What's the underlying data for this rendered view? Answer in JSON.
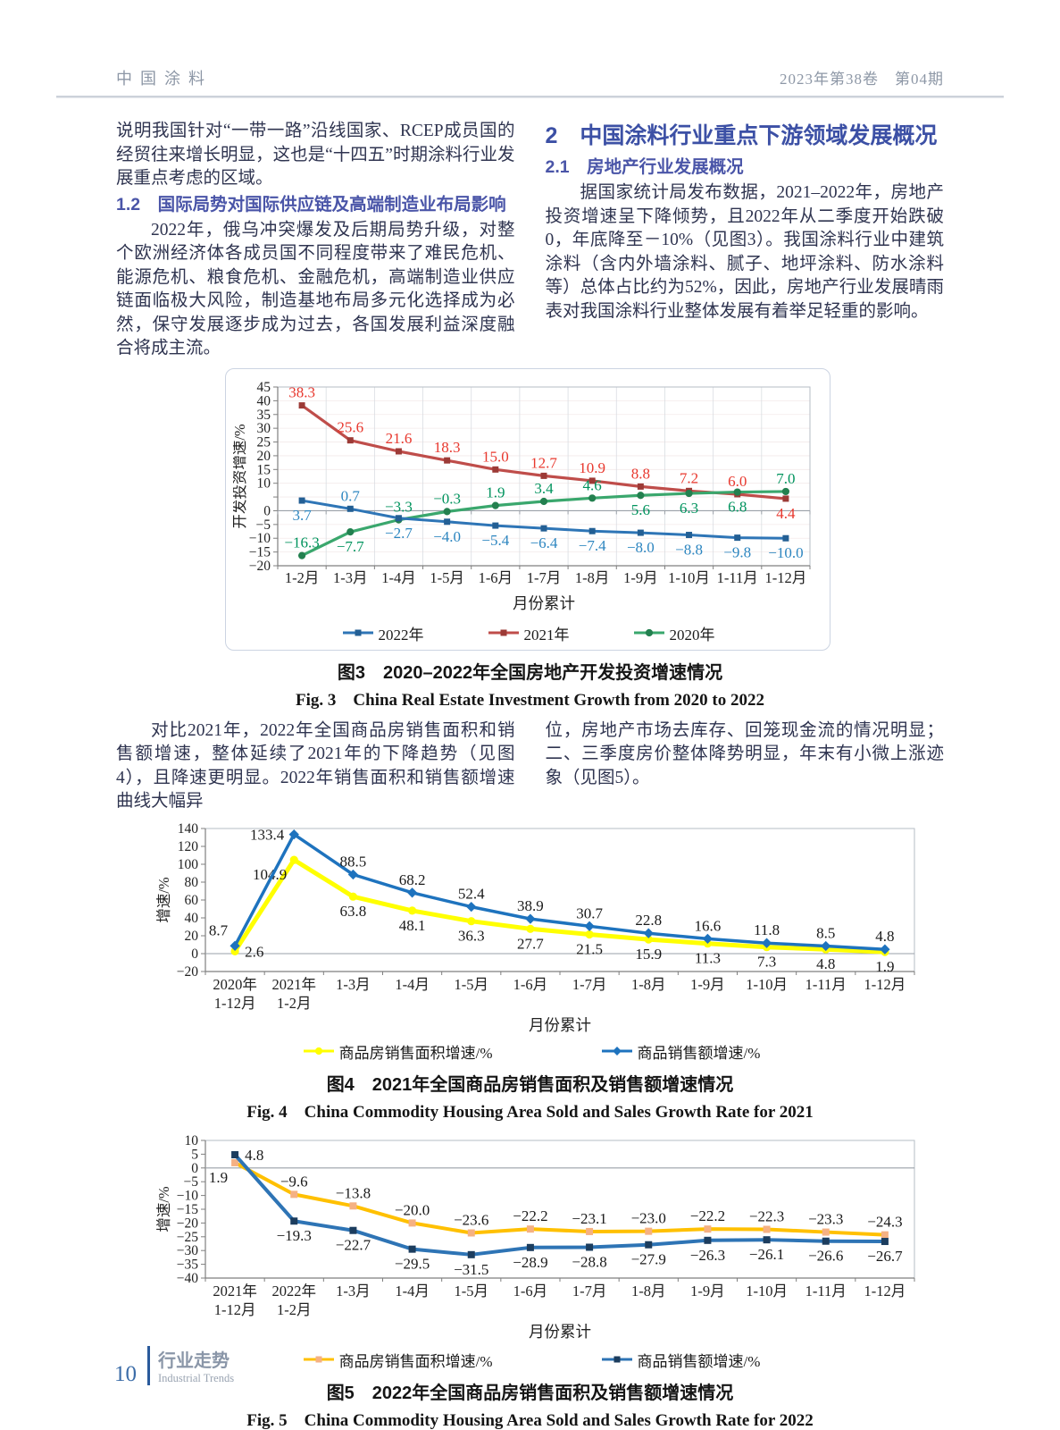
{
  "header": {
    "journal": "中国涂料",
    "issue": "2023年第38卷　第04期"
  },
  "columns_top": {
    "left": {
      "para1": "说明我国针对“一带一路”沿线国家、RCEP成员国的经贸往来增长明显，这也是“十四五”时期涂料行业发展重点考虑的区域。",
      "heading_1_2": "1.2　国际局势对国际供应链及高端制造业布局影响",
      "para2": "2022年，俄乌冲突爆发及后期局势升级，对整个欧洲经济体各成员国不同程度带来了难民危机、能源危机、粮食危机、金融危机，高端制造业供应链面临极大风险，制造基地布局多元化选择成为必然，保守发展逐步成为过去，各国发展利益深度融合将成主流。"
    },
    "right": {
      "heading_2": "2　中国涂料行业重点下游领域发展概况",
      "heading_2_1": "2.1　房地产行业发展概况",
      "para": "据国家统计局发布数据，2021–2022年，房地产投资增速呈下降倾势，且2022年从二季度开始跌破0，年底降至－10%（见图3）。我国涂料行业中建筑涂料（含内外墙涂料、腻子、地坪涂料、防水涂料等）总体占比约为52%，因此，房地产行业发展晴雨表对我国涂料行业整体发展有着举足轻重的影响。"
    }
  },
  "columns_mid": {
    "left": "对比2021年，2022年全国商品房销售面积和销售额增速，整体延续了2021年的下降趋势（见图4），且降速更明显。2022年销售面积和销售额增速曲线大幅异",
    "right": "位，房地产市场去库存、回笼现金流的情况明显；二、三季度房价整体降势明显，年末有小微上涨迹象（见图5）。"
  },
  "chart_data": [
    {
      "id": "fig3",
      "type": "line",
      "title": "图3　2020–2022年全国房地产开发投资增速情况",
      "subtitle": "Fig. 3　China Real Estate Investment Growth from 2020 to 2022",
      "xlabel": "月份累计",
      "ylabel": "开发投资增速/%",
      "ylim": [
        -20,
        45
      ],
      "ytick_step": 5,
      "hidden_ytick_labels": [
        5
      ],
      "grid": true,
      "legend_position": "bottom",
      "categories": [
        "1-2月",
        "1-3月",
        "1-4月",
        "1-5月",
        "1-6月",
        "1-7月",
        "1-8月",
        "1-9月",
        "1-10月",
        "1-11月",
        "1-12月"
      ],
      "series": [
        {
          "name": "2022年",
          "color": "#2e75b6",
          "marker_color": "#235f94",
          "label_color": "#2d86c0",
          "marker": "square",
          "values": [
            3.7,
            0.7,
            -2.7,
            -4.0,
            -5.4,
            -6.4,
            -7.4,
            -8.0,
            -8.8,
            -9.8,
            -10.0
          ],
          "labels": [
            "3.7",
            "0.7",
            "−2.7",
            "−4.0",
            "−5.4",
            "−6.4",
            "−7.4",
            "−8.0",
            "−8.8",
            "−9.8",
            "−10.0"
          ]
        },
        {
          "name": "2021年",
          "color": "#bf4d4a",
          "marker_color": "#9c3a36",
          "label_color": "#e8382e",
          "marker": "square",
          "values": [
            38.3,
            25.6,
            21.6,
            18.3,
            15.0,
            12.7,
            10.9,
            8.8,
            7.2,
            6.0,
            4.4
          ],
          "labels": [
            "38.3",
            "25.6",
            "21.6",
            "18.3",
            "15.0",
            "12.7",
            "10.9",
            "8.8",
            "7.2",
            "6.0",
            "4.4"
          ]
        },
        {
          "name": "2020年",
          "color": "#3aa76d",
          "marker_color": "#23804f",
          "label_color": "#00935d",
          "marker": "circle",
          "values": [
            -16.3,
            -7.7,
            -3.3,
            -0.3,
            1.9,
            3.4,
            4.6,
            5.6,
            6.3,
            6.8,
            7.0
          ],
          "labels": [
            "−16.3",
            "−7.7",
            "−3.3",
            "−0.3",
            "1.9",
            "3.4",
            "4.6",
            "5.6",
            "6.3",
            "6.8",
            "7.0"
          ]
        }
      ]
    },
    {
      "id": "fig4",
      "type": "line",
      "title": "图4　2021年全国商品房销售面积及销售额增速情况",
      "subtitle": "Fig. 4　China Commodity Housing Area Sold and Sales Growth Rate for 2021",
      "xlabel": "月份累计",
      "ylabel": "增速/%",
      "ylim": [
        -20,
        140
      ],
      "ytick_step": 20,
      "grid": false,
      "legend_position": "bottom",
      "categories": [
        "2020年\n1-12月",
        "2021年\n1-2月",
        "1-3月",
        "1-4月",
        "1-5月",
        "1-6月",
        "1-7月",
        "1-8月",
        "1-9月",
        "1-10月",
        "1-11月",
        "1-12月"
      ],
      "series": [
        {
          "name": "商品房销售面积增速/%",
          "color": "#ffff00",
          "marker_color": "#ffff00",
          "label_color": "#1a1a1a",
          "marker": "circle",
          "values": [
            2.6,
            104.9,
            63.8,
            48.1,
            36.3,
            27.7,
            21.5,
            15.9,
            11.3,
            7.3,
            4.8,
            1.9
          ],
          "labels": [
            "2.6",
            "104.9",
            "63.8",
            "48.1",
            "36.3",
            "27.7",
            "21.5",
            "15.9",
            "11.3",
            "7.3",
            "4.8",
            "1.9"
          ]
        },
        {
          "name": "商品销售额增速/%",
          "color": "#1e73be",
          "marker_color": "#1e73be",
          "label_color": "#1a1a1a",
          "marker": "diamond",
          "values": [
            8.7,
            133.4,
            88.5,
            68.2,
            52.4,
            38.9,
            30.7,
            22.8,
            16.6,
            11.8,
            8.5,
            4.8
          ],
          "labels": [
            "8.7",
            "133.4",
            "88.5",
            "68.2",
            "52.4",
            "38.9",
            "30.7",
            "22.8",
            "16.6",
            "11.8",
            "8.5",
            "4.8"
          ]
        }
      ]
    },
    {
      "id": "fig5",
      "type": "line",
      "title": "图5　2022年全国商品房销售面积及销售额增速情况",
      "subtitle": "Fig. 5　China Commodity Housing Area Sold and Sales Growth Rate for 2022",
      "xlabel": "月份累计",
      "ylabel": "增速/%",
      "ylim": [
        -40,
        10
      ],
      "ytick_step": 5,
      "grid": false,
      "legend_position": "bottom",
      "categories": [
        "2021年\n1-12月",
        "2022年\n1-2月",
        "1-3月",
        "1-4月",
        "1-5月",
        "1-6月",
        "1-7月",
        "1-8月",
        "1-9月",
        "1-10月",
        "1-11月",
        "1-12月"
      ],
      "series": [
        {
          "name": "商品房销售面积增速/%",
          "color": "#ffc000",
          "marker_color": "#f5b183",
          "label_color": "#1a1a1a",
          "marker": "square",
          "values": [
            1.9,
            -9.6,
            -13.8,
            -20.0,
            -23.6,
            -22.2,
            -23.1,
            -23.0,
            -22.2,
            -22.3,
            -23.3,
            -24.3
          ],
          "labels": [
            "1.9",
            "−9.6",
            "−13.8",
            "−20.0",
            "−23.6",
            "−22.2",
            "−23.1",
            "−23.0",
            "−22.2",
            "−22.3",
            "−23.3",
            "−24.3"
          ]
        },
        {
          "name": "商品销售额增速/%",
          "color": "#2e74b5",
          "marker_color": "#1c3d5e",
          "label_color": "#1a1a1a",
          "marker": "square",
          "values": [
            4.8,
            -19.3,
            -22.7,
            -29.5,
            -31.5,
            -28.9,
            -28.8,
            -27.9,
            -26.3,
            -26.1,
            -26.6,
            -26.7
          ],
          "labels": [
            "4.8",
            "−19.3",
            "−22.7",
            "−29.5",
            "−31.5",
            "−28.9",
            "−28.8",
            "−27.9",
            "−26.3",
            "−26.1",
            "−26.6",
            "−26.7"
          ]
        }
      ]
    }
  ],
  "footer": {
    "page_number": "10",
    "section_zh": "行业走势",
    "section_en": "Industrial Trends"
  }
}
